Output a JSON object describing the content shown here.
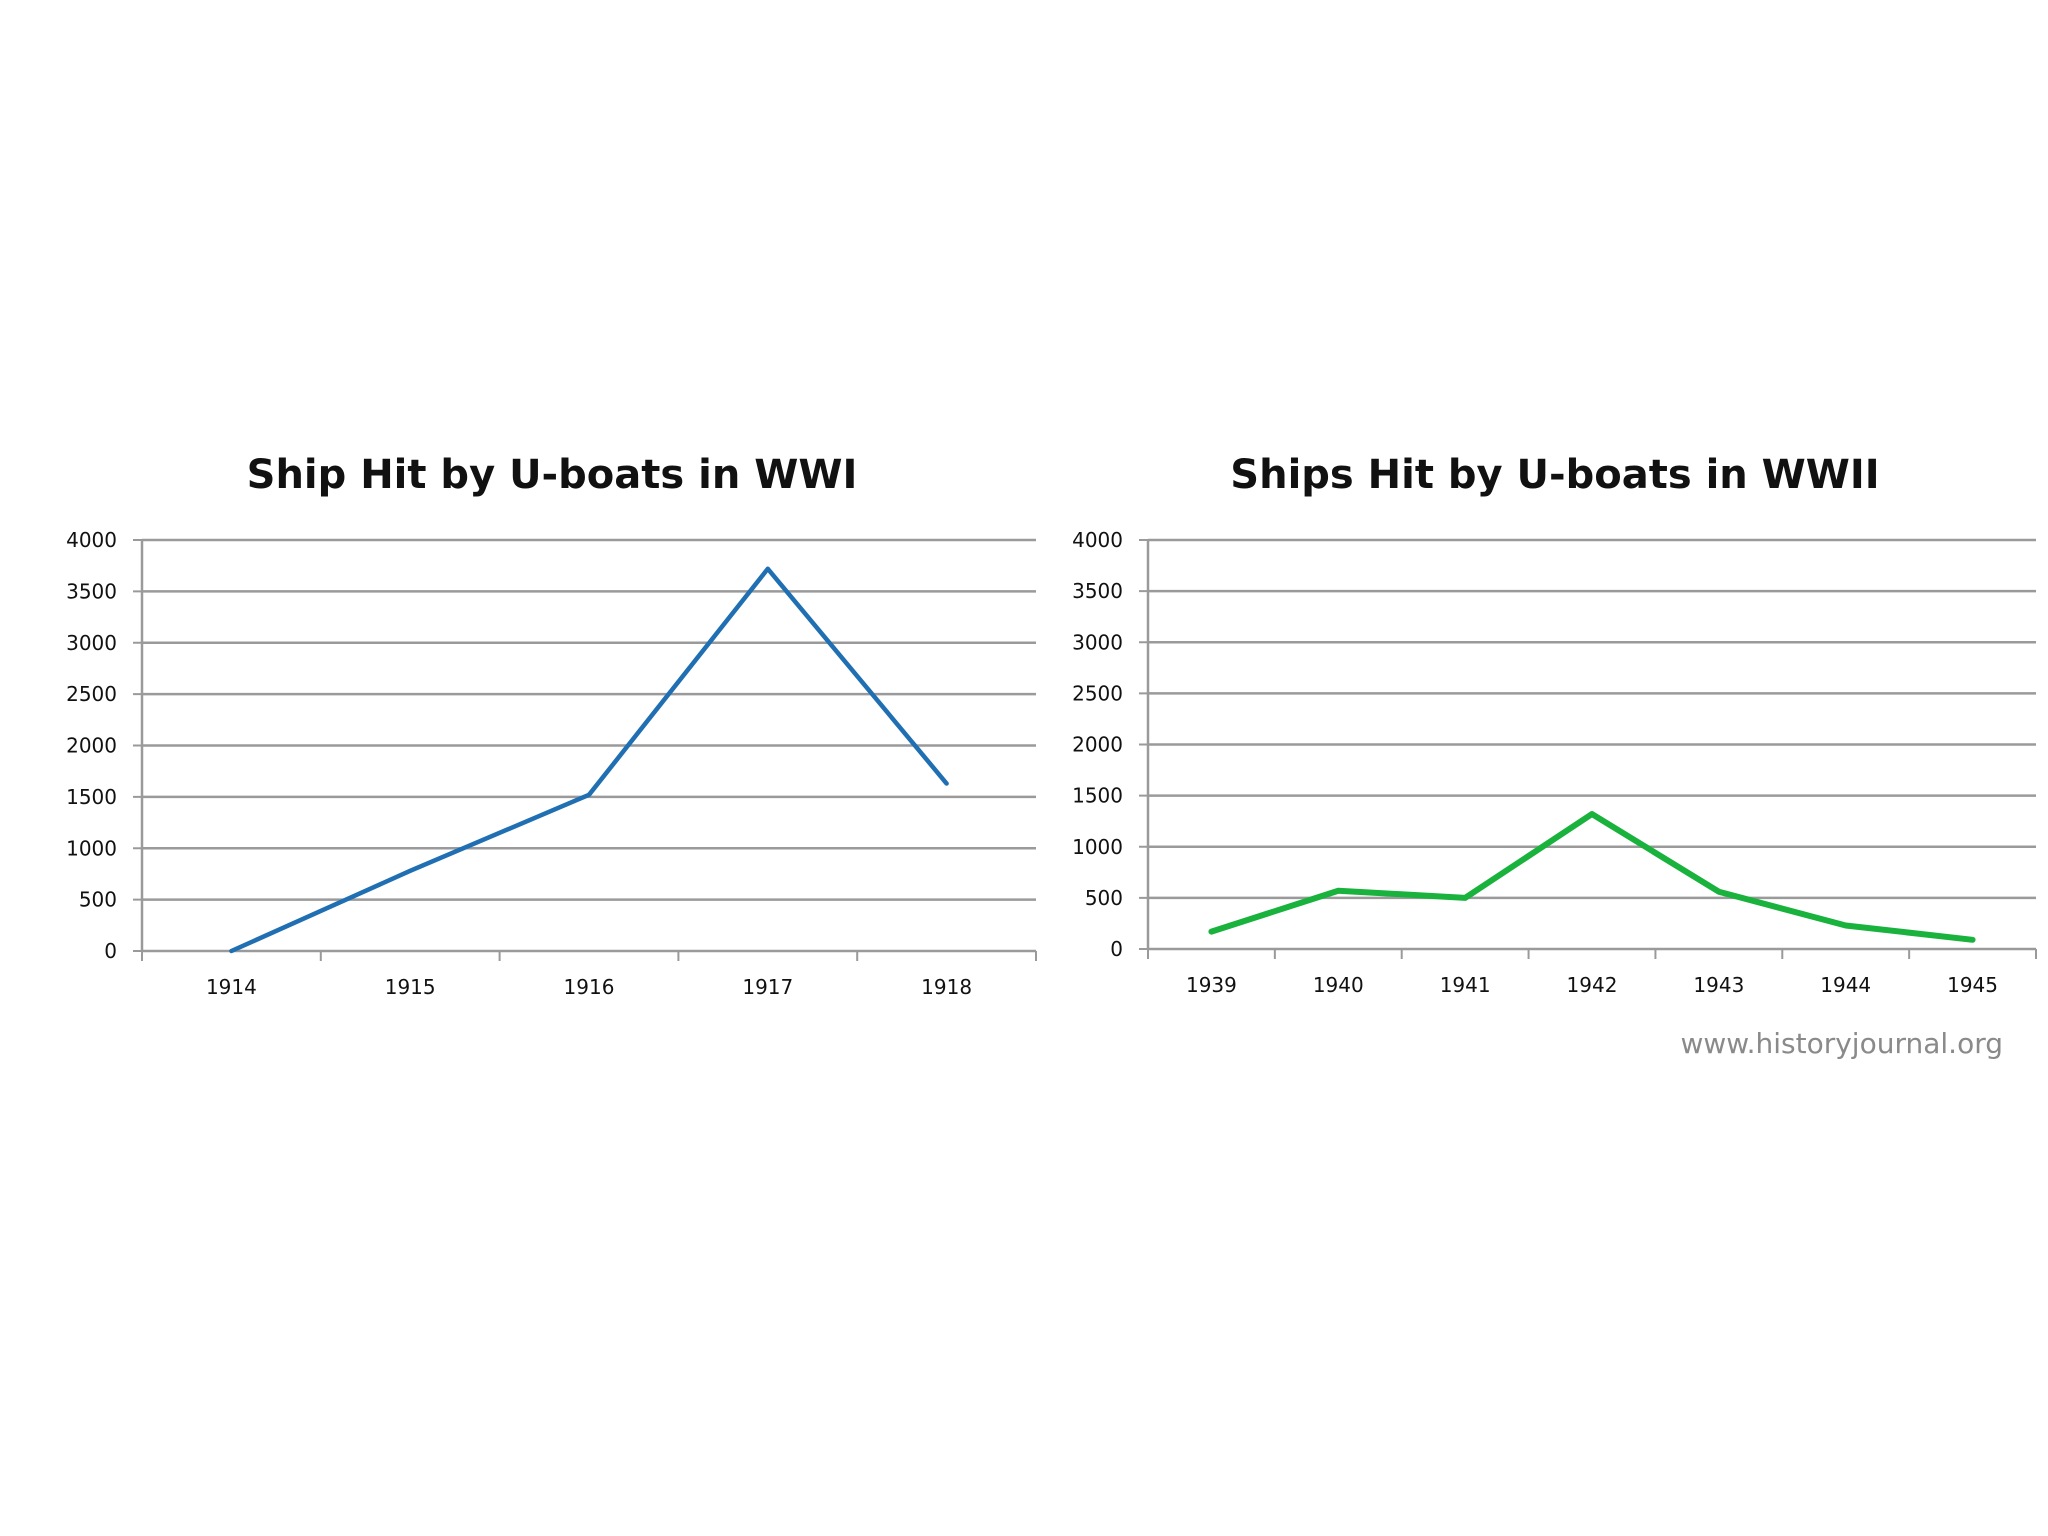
{
  "chart_data": [
    {
      "type": "line",
      "title": "Ship Hit by U-boats in WWI",
      "categories": [
        "1914",
        "1915",
        "1916",
        "1917",
        "1918"
      ],
      "series": [
        {
          "values": [
            0,
            780,
            1520,
            3720,
            1630
          ]
        }
      ],
      "ylim": [
        0,
        4000
      ],
      "yticks": [
        0,
        500,
        1000,
        1500,
        2000,
        2500,
        3000,
        3500,
        4000
      ],
      "grid": true,
      "color": "#1f6fb2"
    },
    {
      "type": "line",
      "title": "Ships Hit by U-boats in WWII",
      "categories": [
        "1939",
        "1940",
        "1941",
        "1942",
        "1943",
        "1944",
        "1945"
      ],
      "series": [
        {
          "values": [
            170,
            570,
            500,
            1320,
            560,
            230,
            90
          ]
        }
      ],
      "ylim": [
        0,
        4000
      ],
      "yticks": [
        0,
        500,
        1000,
        1500,
        2000,
        2500,
        3000,
        3500,
        4000
      ],
      "grid": true,
      "color": "#19b23c"
    }
  ],
  "source": "www.historyjournal.org"
}
